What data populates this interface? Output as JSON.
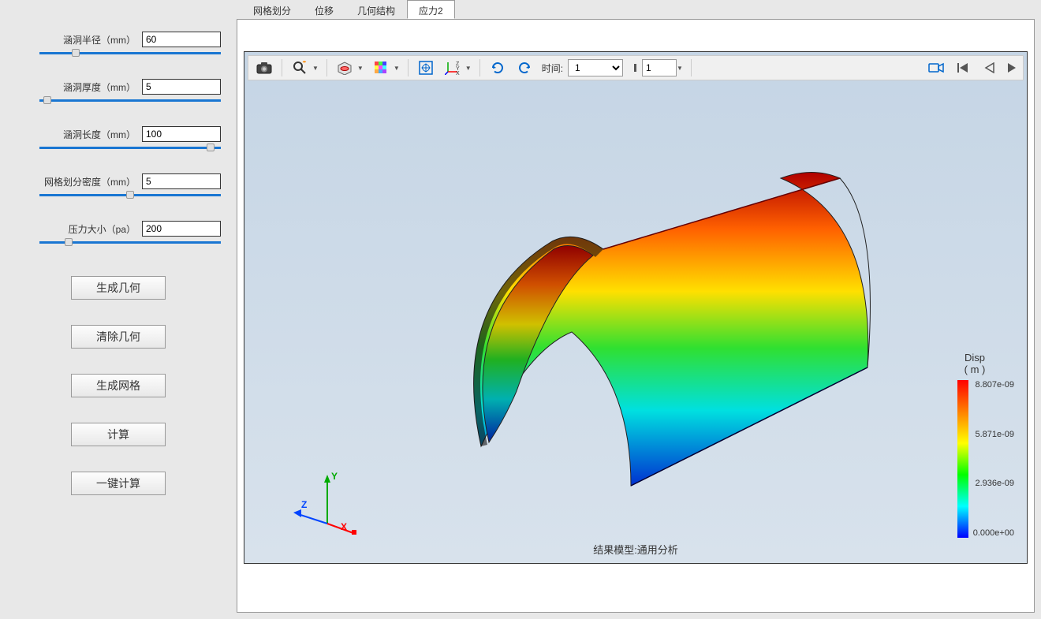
{
  "sidebar": {
    "params": [
      {
        "label": "涵洞半径（mm）",
        "value": "60",
        "thumb_pct": 18
      },
      {
        "label": "涵洞厚度（mm）",
        "value": "5",
        "thumb_pct": 2
      },
      {
        "label": "涵洞长度（mm）",
        "value": "100",
        "thumb_pct": 92
      },
      {
        "label": "网格划分密度（mm）",
        "value": "5",
        "thumb_pct": 48
      },
      {
        "label": "压力大小（pa）",
        "value": "200",
        "thumb_pct": 14
      }
    ],
    "buttons": [
      {
        "label": "生成几何",
        "name": "generate-geometry-button"
      },
      {
        "label": "清除几何",
        "name": "clear-geometry-button"
      },
      {
        "label": "生成网格",
        "name": "generate-mesh-button"
      },
      {
        "label": "计算",
        "name": "compute-button"
      },
      {
        "label": "一键计算",
        "name": "one-click-compute-button"
      }
    ]
  },
  "tabs": {
    "items": [
      {
        "label": "网格划分",
        "active": false
      },
      {
        "label": "位移",
        "active": false
      },
      {
        "label": "几何结构",
        "active": false
      },
      {
        "label": "应力2",
        "active": true
      }
    ]
  },
  "toolbar": {
    "time_label": "时间:",
    "time_value": "1",
    "frame_value": "1"
  },
  "viewport": {
    "background_top": "#c5d5e5",
    "background_bottom": "#d8e2ec",
    "triad": {
      "x_label": "X",
      "y_label": "Y",
      "z_label": "Z",
      "x_color": "#ff0000",
      "y_color": "#00aa00",
      "z_color": "#0044ff"
    },
    "result_label": "结果模型:通用分析",
    "colorbar": {
      "title": "Disp",
      "unit": "( m )",
      "gradient": [
        "#ff0000",
        "#ff8000",
        "#ffff00",
        "#00ff00",
        "#00ffff",
        "#0000ff"
      ],
      "ticks": [
        "8.807e-09",
        "5.871e-09",
        "2.936e-09",
        "0.000e+00"
      ]
    },
    "shell_gradient_vertical": [
      "#b00000",
      "#ff6000",
      "#ffe000",
      "#30e030",
      "#00e0e0",
      "#0030d0"
    ]
  }
}
